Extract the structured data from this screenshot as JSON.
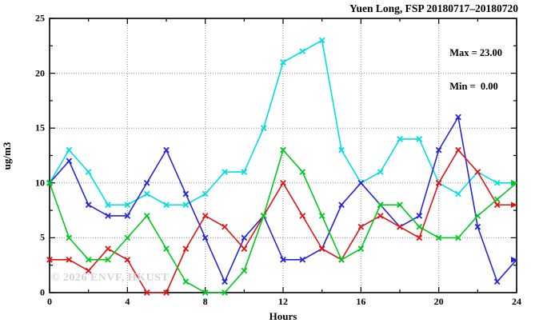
{
  "chart_data": {
    "type": "line",
    "title": "Yuen Long, FSP 20180717–20180720",
    "xlabel": "Hours",
    "ylabel": "ug/m3",
    "annotation": {
      "max_label": "Max = 23.00",
      "min_label": "Min =  0.00"
    },
    "watermark": "© 2026 ENVF, HKUST",
    "xlim": [
      0,
      24
    ],
    "ylim": [
      0,
      25
    ],
    "x_major_ticks": [
      0,
      4,
      8,
      12,
      16,
      20,
      24
    ],
    "x_minor_step": 2,
    "y_major_ticks": [
      0,
      5,
      10,
      15,
      20,
      25
    ],
    "y_minor_step": 2.5,
    "grid": true,
    "legend_position": "none",
    "x": [
      0,
      1,
      2,
      3,
      4,
      5,
      6,
      7,
      8,
      9,
      10,
      11,
      12,
      13,
      14,
      15,
      16,
      17,
      18,
      19,
      20,
      21,
      22,
      23,
      24
    ],
    "series": [
      {
        "name": "series-cyan",
        "color": "#00dfdf",
        "values": [
          10,
          13,
          11,
          8,
          8,
          9,
          8,
          8,
          9,
          11,
          11,
          15,
          21,
          22,
          23,
          13,
          10,
          11,
          14,
          14,
          10,
          9,
          11,
          10,
          10
        ]
      },
      {
        "name": "series-blue",
        "color": "#2626d8",
        "values": [
          10,
          12,
          8,
          7,
          7,
          10,
          13,
          9,
          5,
          1,
          5,
          7,
          3,
          3,
          4,
          8,
          10,
          8,
          6,
          7,
          13,
          16,
          6,
          1,
          3
        ]
      },
      {
        "name": "series-red",
        "color": "#df1414",
        "values": [
          3,
          3,
          2,
          4,
          3,
          0,
          0,
          4,
          7,
          6,
          4,
          7,
          10,
          7,
          4,
          3,
          6,
          7,
          6,
          5,
          10,
          13,
          11,
          8,
          8
        ]
      },
      {
        "name": "series-green",
        "color": "#00c81e",
        "values": [
          10,
          5,
          3,
          3,
          5,
          7,
          4,
          1,
          0,
          0,
          2,
          7,
          13,
          11,
          7,
          3,
          4,
          8,
          8,
          6,
          5,
          5,
          7,
          8.5,
          10
        ]
      }
    ],
    "colors": {
      "grid": "#8f8f8f",
      "axis": "#000000",
      "watermark": "#d4d4d4",
      "background": "#ffffff"
    }
  }
}
